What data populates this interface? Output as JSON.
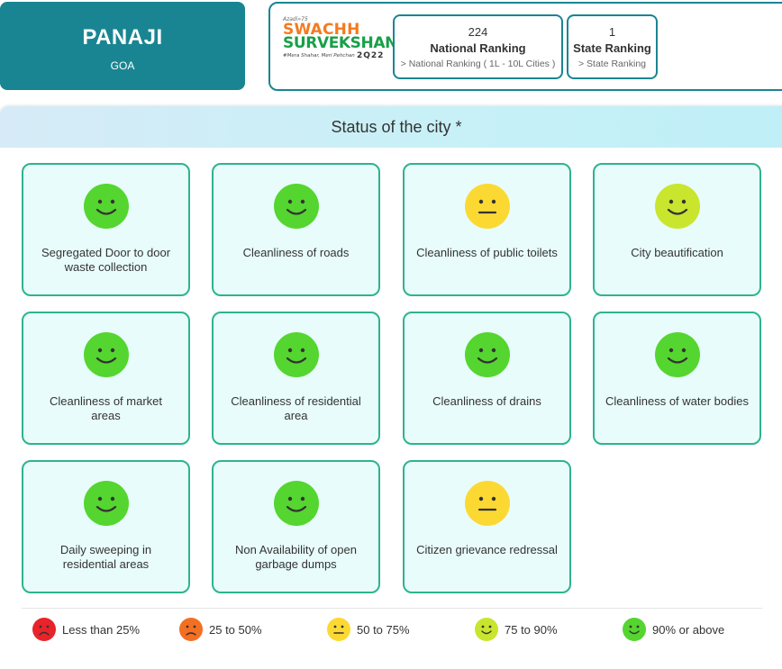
{
  "city": {
    "name": "PANAJI",
    "state": "GOA"
  },
  "logo": {
    "tagline": "Azadi»75",
    "line1": "SWACHH",
    "line2": "SURVEKSHAN",
    "motto": "#Mera Shahar, Meri Pehchan",
    "year": "2Q22"
  },
  "rankings": {
    "national": {
      "value": "224",
      "title": "National Ranking",
      "sub": "> National Ranking ( 1L - 10L Cities )"
    },
    "state": {
      "value": "1",
      "title": "State Ranking",
      "sub": "> State Ranking"
    }
  },
  "status": {
    "title": "Status of the city *",
    "items": [
      {
        "label": "Segregated Door to door waste collection",
        "rating": "90% or above",
        "icon": "smile-face-icon"
      },
      {
        "label": "Cleanliness of roads",
        "rating": "90% or above",
        "icon": "smile-face-icon"
      },
      {
        "label": "Cleanliness of public toilets",
        "rating": "50 to 75%",
        "icon": "neutral-face-icon"
      },
      {
        "label": "City beautification",
        "rating": "75 to 90%",
        "icon": "smile-face-icon"
      },
      {
        "label": "Cleanliness of market areas",
        "rating": "90% or above",
        "icon": "smile-face-icon"
      },
      {
        "label": "Cleanliness of residential area",
        "rating": "90% or above",
        "icon": "smile-face-icon"
      },
      {
        "label": "Cleanliness of drains",
        "rating": "90% or above",
        "icon": "smile-face-icon"
      },
      {
        "label": "Cleanliness of water bodies",
        "rating": "90% or above",
        "icon": "smile-face-icon"
      },
      {
        "label": "Daily sweeping in residential areas",
        "rating": "90% or above",
        "icon": "smile-face-icon"
      },
      {
        "label": "Non Availability of open garbage dumps",
        "rating": "90% or above",
        "icon": "smile-face-icon"
      },
      {
        "label": "Citizen grievance redressal",
        "rating": "50 to 75%",
        "icon": "neutral-face-icon"
      }
    ]
  },
  "legend": [
    {
      "label": "Less than 25%",
      "color": "#e8232a",
      "icon": "sad-face-icon"
    },
    {
      "label": "25 to 50%",
      "color": "#f36f22",
      "icon": "sad-face-icon"
    },
    {
      "label": "50 to 75%",
      "color": "#fcd932",
      "icon": "neutral-face-icon"
    },
    {
      "label": "75 to 90%",
      "color": "#c9e52d",
      "icon": "smile-face-icon"
    },
    {
      "label": "90% or above",
      "color": "#55d52f",
      "icon": "smile-face-icon"
    }
  ],
  "colors": {
    "brand_teal": "#1a8592",
    "tile_border": "#2fb38e",
    "tile_bg": "#e8fcfb"
  }
}
